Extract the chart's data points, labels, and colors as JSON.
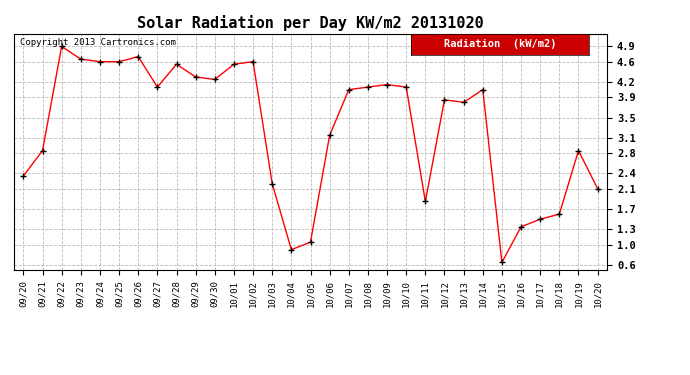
{
  "title": "Solar Radiation per Day KW/m2 20131020",
  "dates": [
    "09/20",
    "09/21",
    "09/22",
    "09/23",
    "09/24",
    "09/25",
    "09/26",
    "09/27",
    "09/28",
    "09/29",
    "09/30",
    "10/01",
    "10/02",
    "10/03",
    "10/04",
    "10/05",
    "10/06",
    "10/07",
    "10/08",
    "10/09",
    "10/10",
    "10/11",
    "10/12",
    "10/13",
    "10/14",
    "10/15",
    "10/16",
    "10/17",
    "10/18",
    "10/19",
    "10/20"
  ],
  "values": [
    2.35,
    2.85,
    4.9,
    4.65,
    4.6,
    4.6,
    4.7,
    4.1,
    4.55,
    4.3,
    4.25,
    4.55,
    4.6,
    2.2,
    0.9,
    1.05,
    3.15,
    4.05,
    4.1,
    4.15,
    4.1,
    1.85,
    3.85,
    3.8,
    4.05,
    0.65,
    1.35,
    1.5,
    1.6,
    2.85,
    2.1
  ],
  "line_color": "#ff0000",
  "marker_color": "#000000",
  "bg_color": "#ffffff",
  "plot_bg_color": "#ffffff",
  "grid_color": "#bbbbbb",
  "legend_label": "Radiation  (kW/m2)",
  "legend_bg": "#cc0000",
  "legend_text_color": "#ffffff",
  "copyright_text": "Copyright 2013 Cartronics.com",
  "ylim_min": 0.5,
  "ylim_max": 5.15,
  "yticks": [
    0.6,
    1.0,
    1.3,
    1.7,
    2.1,
    2.4,
    2.8,
    3.1,
    3.5,
    3.9,
    4.2,
    4.6,
    4.9
  ],
  "title_fontsize": 11,
  "tick_fontsize": 6.5,
  "ytick_fontsize": 7.5,
  "copyright_fontsize": 6.5,
  "legend_fontsize": 7.5
}
